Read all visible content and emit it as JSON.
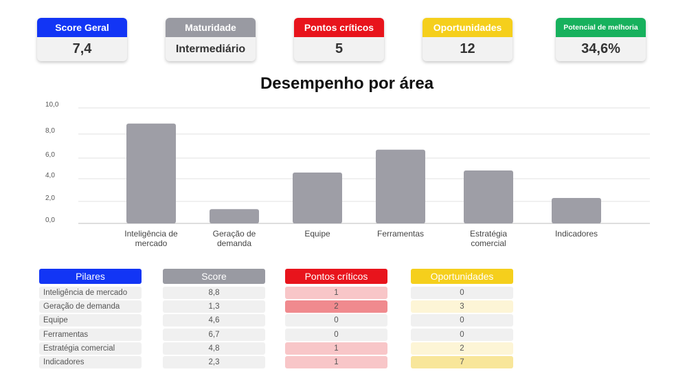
{
  "kpis": [
    {
      "label": "Score Geral",
      "value": "7,4",
      "color": "#1235f5"
    },
    {
      "label": "Maturidade",
      "value": "Intermediário",
      "color": "#999aa2"
    },
    {
      "label": "Pontos críticos",
      "value": "5",
      "color": "#e8141c"
    },
    {
      "label": "Oportunidades",
      "value": "12",
      "color": "#f5cf1c"
    },
    {
      "label": "Potencial de melhoria",
      "value": "34,6%",
      "color": "#17b15d"
    }
  ],
  "chart_data": {
    "type": "bar",
    "title": "Desempenho por área",
    "categories": [
      [
        "Inteligência de",
        "mercado"
      ],
      [
        "Geração de",
        "demanda"
      ],
      [
        "Equipe"
      ],
      [
        "Ferramentas"
      ],
      [
        "Estratégia",
        "comercial"
      ],
      [
        "Indicadores"
      ]
    ],
    "values": [
      8.8,
      1.3,
      4.6,
      6.7,
      4.8,
      2.3
    ],
    "yticks": [
      "0,0",
      "2,0",
      "4,0",
      "6,0",
      "8,0",
      "10,0"
    ],
    "ylim": [
      0,
      10
    ],
    "grid": true,
    "bar_color": "#9e9ea6"
  },
  "table": {
    "headers": [
      "Pilares",
      "Score",
      "Pontos críticos",
      "Oportunidades"
    ],
    "header_colors": [
      "#1235f5",
      "#999aa2",
      "#e8141c",
      "#f5cf1c"
    ],
    "rows": [
      {
        "pilar": "Inteligência de mercado",
        "score": "8,8",
        "criticos": "1",
        "oportunidades": "0"
      },
      {
        "pilar": "Geração de demanda",
        "score": "1,3",
        "criticos": "2",
        "oportunidades": "3"
      },
      {
        "pilar": "Equipe",
        "score": "4,6",
        "criticos": "0",
        "oportunidades": "0"
      },
      {
        "pilar": "Ferramentas",
        "score": "6,7",
        "criticos": "0",
        "oportunidades": "0"
      },
      {
        "pilar": "Estratégia comercial",
        "score": "4,8",
        "criticos": "1",
        "oportunidades": "2"
      },
      {
        "pilar": "Indicadores",
        "score": "2,3",
        "criticos": "1",
        "oportunidades": "7"
      }
    ],
    "critical_colors": {
      "0": "#f0f0f0",
      "1": "#f8c6c8",
      "2": "#f08a8e"
    },
    "opportunity_colors": {
      "0": "#f0f0f0",
      "low": "#fdf5d6",
      "high": "#f8e69a"
    }
  }
}
